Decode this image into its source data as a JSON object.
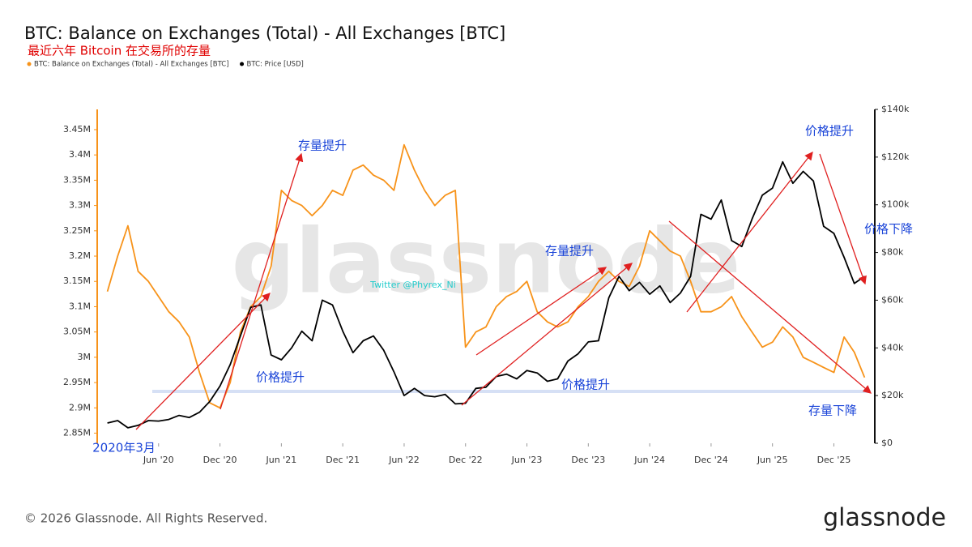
{
  "chart_data": {
    "type": "line",
    "title": "BTC: Balance on Exchanges (Total) - All Exchanges [BTC]",
    "subtitle": "最近六年 Bitcoin 在交易所的存量",
    "x": [
      "2020-01",
      "2020-02",
      "2020-03",
      "2020-04",
      "2020-05",
      "2020-06",
      "2020-07",
      "2020-08",
      "2020-09",
      "2020-10",
      "2020-11",
      "2020-12",
      "2021-01",
      "2021-02",
      "2021-03",
      "2021-04",
      "2021-05",
      "2021-06",
      "2021-07",
      "2021-08",
      "2021-09",
      "2021-10",
      "2021-11",
      "2021-12",
      "2022-01",
      "2022-02",
      "2022-03",
      "2022-04",
      "2022-05",
      "2022-06",
      "2022-07",
      "2022-08",
      "2022-09",
      "2022-10",
      "2022-11",
      "2022-12",
      "2023-01",
      "2023-02",
      "2023-03",
      "2023-04",
      "2023-05",
      "2023-06",
      "2023-07",
      "2023-08",
      "2023-09",
      "2023-10",
      "2023-11",
      "2023-12",
      "2024-01",
      "2024-02",
      "2024-03",
      "2024-04",
      "2024-05",
      "2024-06",
      "2024-07",
      "2024-08",
      "2024-09",
      "2024-10",
      "2024-11",
      "2024-12",
      "2025-01",
      "2025-02",
      "2025-03",
      "2025-04",
      "2025-05",
      "2025-06",
      "2025-07",
      "2025-08",
      "2025-09",
      "2025-10",
      "2025-11",
      "2025-12",
      "2026-01",
      "2026-02",
      "2026-03"
    ],
    "series": [
      {
        "name": "BTC: Balance on Exchanges (Total) - All Exchanges [BTC]",
        "color": "#f7931a",
        "values": [
          3130000,
          3200000,
          3260000,
          3170000,
          3150000,
          3120000,
          3090000,
          3070000,
          3040000,
          2970000,
          2910000,
          2900000,
          2950000,
          3050000,
          3100000,
          3120000,
          3180000,
          3330000,
          3310000,
          3300000,
          3280000,
          3300000,
          3330000,
          3320000,
          3370000,
          3380000,
          3360000,
          3350000,
          3330000,
          3420000,
          3370000,
          3330000,
          3300000,
          3320000,
          3330000,
          3020000,
          3050000,
          3060000,
          3100000,
          3120000,
          3130000,
          3150000,
          3090000,
          3070000,
          3060000,
          3070000,
          3100000,
          3120000,
          3150000,
          3170000,
          3150000,
          3140000,
          3180000,
          3250000,
          3230000,
          3210000,
          3200000,
          3150000,
          3090000,
          3090000,
          3100000,
          3120000,
          3080000,
          3050000,
          3020000,
          3030000,
          3060000,
          3040000,
          3000000,
          2990000,
          2980000,
          2970000,
          3040000,
          3010000,
          2960000
        ]
      },
      {
        "name": "BTC: Price [USD]",
        "color": "#000000",
        "axis": "y2",
        "values": [
          8500,
          9500,
          6500,
          7500,
          9500,
          9300,
          10000,
          11700,
          10800,
          13000,
          17500,
          24000,
          33000,
          45000,
          57000,
          58000,
          37000,
          35000,
          40000,
          47000,
          43000,
          60000,
          58000,
          47000,
          38000,
          43000,
          45000,
          39000,
          30000,
          20000,
          23000,
          20000,
          19500,
          20500,
          16500,
          16800,
          23000,
          23500,
          28000,
          29000,
          27000,
          30500,
          29500,
          26000,
          27000,
          34500,
          37500,
          42500,
          43000,
          61000,
          70000,
          64000,
          67500,
          62500,
          66000,
          59000,
          63000,
          70000,
          96000,
          94000,
          102000,
          85000,
          82500,
          94000,
          104000,
          107000,
          118000,
          109000,
          114000,
          110000,
          91000,
          88000,
          78000,
          67000,
          70000
        ]
      }
    ],
    "xlim": [
      "2019-12",
      "2026-04"
    ],
    "xticks": [
      {
        "value": "2020-06",
        "label": "Jun '20"
      },
      {
        "value": "2020-12",
        "label": "Dec '20"
      },
      {
        "value": "2021-06",
        "label": "Jun '21"
      },
      {
        "value": "2021-12",
        "label": "Dec '21"
      },
      {
        "value": "2022-06",
        "label": "Jun '22"
      },
      {
        "value": "2022-12",
        "label": "Dec '22"
      },
      {
        "value": "2023-06",
        "label": "Jun '23"
      },
      {
        "value": "2023-12",
        "label": "Dec '23"
      },
      {
        "value": "2024-06",
        "label": "Jun '24"
      },
      {
        "value": "2024-12",
        "label": "Dec '24"
      },
      {
        "value": "2025-06",
        "label": "Jun '25"
      },
      {
        "value": "2025-12",
        "label": "Dec '25"
      }
    ],
    "ylim": [
      2830000,
      3490000
    ],
    "yticks": [
      {
        "value": 2850000,
        "label": "2.85M"
      },
      {
        "value": 2900000,
        "label": "2.9M"
      },
      {
        "value": 2950000,
        "label": "2.95M"
      },
      {
        "value": 3000000,
        "label": "3M"
      },
      {
        "value": 3050000,
        "label": "3.05M"
      },
      {
        "value": 3100000,
        "label": "3.1M"
      },
      {
        "value": 3150000,
        "label": "3.15M"
      },
      {
        "value": 3200000,
        "label": "3.2M"
      },
      {
        "value": 3250000,
        "label": "3.25M"
      },
      {
        "value": 3300000,
        "label": "3.3M"
      },
      {
        "value": 3350000,
        "label": "3.35M"
      },
      {
        "value": 3400000,
        "label": "3.4M"
      },
      {
        "value": 3450000,
        "label": "3.45M"
      }
    ],
    "y2lim": [
      0,
      140000
    ],
    "y2ticks": [
      {
        "value": 0,
        "label": "$0"
      },
      {
        "value": 20000,
        "label": "$20k"
      },
      {
        "value": 40000,
        "label": "$40k"
      },
      {
        "value": 60000,
        "label": "$60k"
      },
      {
        "value": 80000,
        "label": "$80k"
      },
      {
        "value": 100000,
        "label": "$100k"
      },
      {
        "value": 120000,
        "label": "$120k"
      },
      {
        "value": 140000,
        "label": "$140k"
      }
    ],
    "annotations": [
      "存量提升",
      "存量提升",
      "价格提升",
      "价格提升",
      "价格提升",
      "价格下降",
      "存量下降",
      "2020年3月"
    ]
  },
  "watermark": "glassnode",
  "credit": "Twitter @Phyrex_Ni",
  "footer": "© 2026 Glassnode. All Rights Reserved.",
  "logo": "glassnode"
}
